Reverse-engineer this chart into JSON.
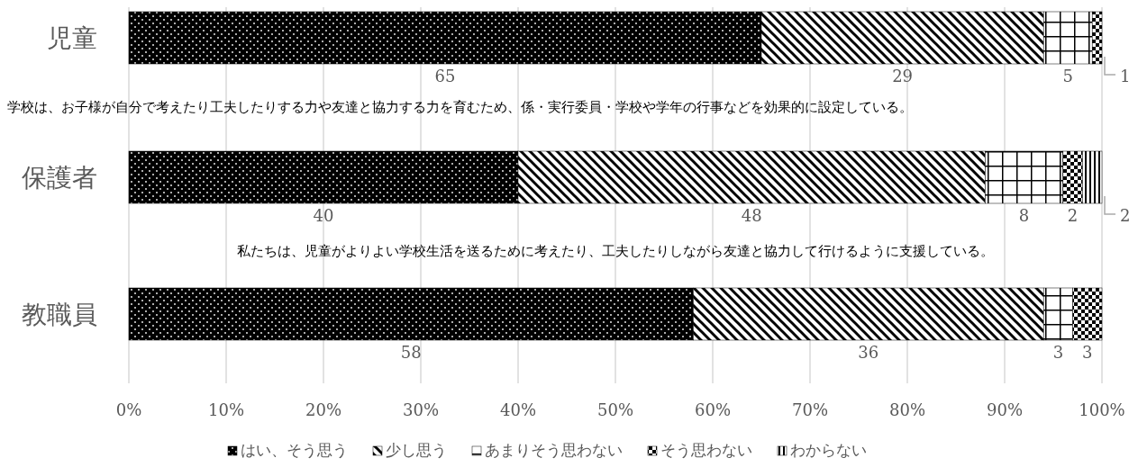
{
  "chart_data": {
    "type": "bar",
    "orientation": "horizontal",
    "stacked": true,
    "categories": [
      "児童",
      "保護者",
      "教職員"
    ],
    "series": [
      {
        "name": "はい、そう思う",
        "color": "#000000",
        "values": [
          65,
          40,
          58
        ],
        "value_labels": [
          "65",
          "40",
          "58"
        ]
      },
      {
        "name": "少し思う",
        "color": "#000000",
        "values": [
          29,
          48,
          36
        ],
        "value_labels": [
          "29",
          "48",
          "36"
        ]
      },
      {
        "name": "あまりそう思わない",
        "color": "#000000",
        "values": [
          5,
          8,
          3
        ],
        "value_labels": [
          "5",
          "8",
          "3"
        ]
      },
      {
        "name": "そう思わない",
        "color": "#000000",
        "values": [
          1,
          2,
          3
        ],
        "value_labels": [
          "1",
          "2",
          "3"
        ]
      },
      {
        "name": "わからない",
        "color": "#000000",
        "values": [
          0,
          2,
          0
        ],
        "value_labels": [
          null,
          "2",
          null
        ]
      }
    ],
    "xlim": [
      0,
      100
    ],
    "xticks": [
      {
        "value": 0,
        "label": "0%"
      },
      {
        "value": 10,
        "label": "10%"
      },
      {
        "value": 20,
        "label": "20%"
      },
      {
        "value": 30,
        "label": "30%"
      },
      {
        "value": 40,
        "label": "40%"
      },
      {
        "value": 50,
        "label": "50%"
      },
      {
        "value": 60,
        "label": "60%"
      },
      {
        "value": 70,
        "label": "70%"
      },
      {
        "value": 80,
        "label": "80%"
      },
      {
        "value": 90,
        "label": "90%"
      },
      {
        "value": 100,
        "label": "100%"
      }
    ],
    "grid": "x",
    "legend": "bottom",
    "annotations": [
      "学校は、お子様が自分で考えたり工夫したりする力や友達と協力する力を育むため、係・実行委員・学校や学年の行事などを効果的に設定している。",
      "私たちは、児童がよりよい学校生活を送るために考えたり、工夫したりしながら友達と協力して行けるように支援している。"
    ]
  }
}
